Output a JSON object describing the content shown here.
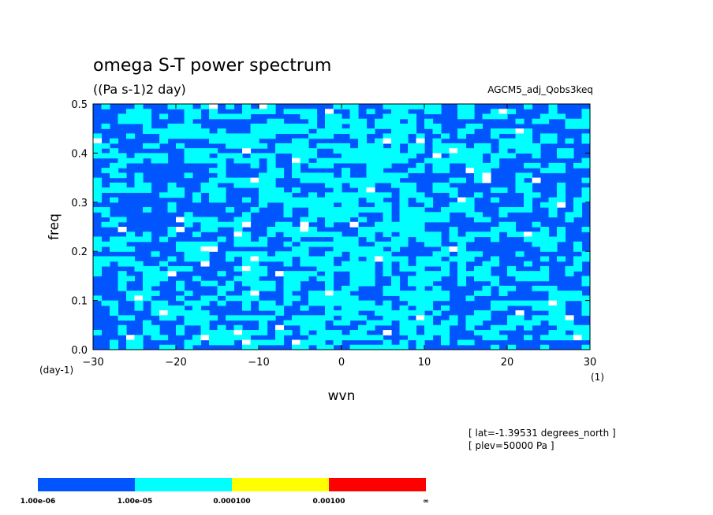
{
  "header": {
    "title": "omega S-T power spectrum",
    "units": "((Pa s-1)2 day)",
    "dataset": "AGCM5_adj_Qobs3keq"
  },
  "info": {
    "lat": "[ lat=-1.39531 degrees_north ]",
    "plev": "[ plev=50000 Pa ]"
  },
  "chart_data": {
    "type": "heatmap",
    "title": "omega S-T power spectrum",
    "subtitle": "((Pa s-1)2 day)",
    "xlabel": "wvn",
    "ylabel": "freq",
    "x_unit": "(1)",
    "y_unit": "(day-1)",
    "xlim": [
      -30,
      30
    ],
    "ylim": [
      0,
      0.5
    ],
    "x_ticks": [
      -30,
      -20,
      -10,
      0,
      10,
      20,
      30
    ],
    "x_tick_labels": [
      "−30",
      "−20",
      "−10",
      "0",
      "10",
      "20",
      "30"
    ],
    "y_ticks": [
      0,
      0.1,
      0.2,
      0.3,
      0.4,
      0.5
    ],
    "y_tick_labels": [
      "0.0",
      "0.1",
      "0.2",
      "0.3",
      "0.4",
      "0.5"
    ],
    "levels": [
      {
        "from": "1.00e-06",
        "to": "1.00e-05",
        "color": "#0055ff"
      },
      {
        "from": "1.00e-05",
        "to": "0.000100",
        "color": "#00ffff"
      },
      {
        "from": "0.000100",
        "to": "0.00100",
        "color": "#ffff00"
      },
      {
        "from": "0.00100",
        "to": "∞",
        "color": "#ff0000"
      }
    ],
    "colorbar_labels": [
      "1.00e-06",
      "1.00e-05",
      "0.000100",
      "0.00100",
      "∞"
    ],
    "grid": false
  }
}
